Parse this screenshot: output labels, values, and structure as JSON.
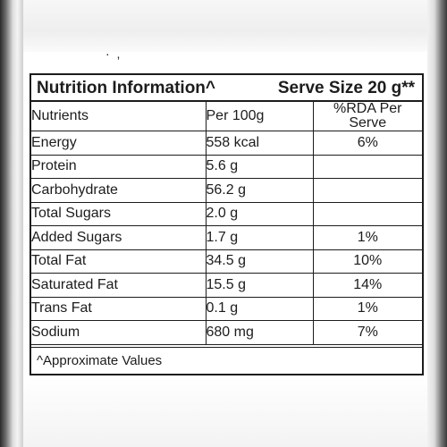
{
  "header": {
    "title": "Nutrition Information^",
    "serve_size": "Serve Size 20 g**"
  },
  "top_fragment": "· ,",
  "columns": {
    "nutrients": "Nutrients",
    "per100": "Per 100g",
    "rda": "%RDA Per Serve"
  },
  "rows": [
    {
      "name": "Energy",
      "per100": "558 kcal",
      "rda": "6%"
    },
    {
      "name": "Protein",
      "per100": "5.6 g",
      "rda": ""
    },
    {
      "name": "Carbohydrate",
      "per100": "56.2 g",
      "rda": ""
    },
    {
      "name": "Total Sugars",
      "per100": "2.0 g",
      "rda": ""
    },
    {
      "name": "Added Sugars",
      "per100": "1.7 g",
      "rda": "1%"
    },
    {
      "name": "Total Fat",
      "per100": "34.5 g",
      "rda": "10%"
    },
    {
      "name": "Saturated Fat",
      "per100": "15.5 g",
      "rda": "14%"
    },
    {
      "name": "Trans Fat",
      "per100": "0.1 g",
      "rda": "1%"
    },
    {
      "name": "Sodium",
      "per100": "680 mg",
      "rda": "7%"
    }
  ],
  "footer": {
    "note": "^Approximate Values"
  }
}
